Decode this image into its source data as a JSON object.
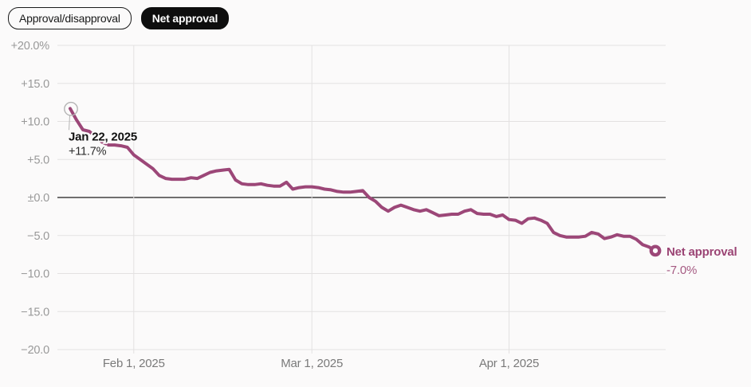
{
  "toggle": {
    "approval_label": "Approval/disapproval",
    "net_label": "Net approval"
  },
  "colors": {
    "line": "#9c4778",
    "end_label_title": "#9b4474",
    "end_label_value": "#a55a82",
    "axis_y_text": "#999999",
    "axis_x_text": "#7a7a7a",
    "grid": "#e3e1e1",
    "zero_line": "#1c1c1c",
    "background": "#fbfafa",
    "start_ring": "#b4b4b4",
    "anno_title_color": "#111111",
    "anno_value_color": "#2b2b2b",
    "pill_active_bg": "#0e0e0e",
    "pill_active_text": "#ffffff"
  },
  "annotations": {
    "start": {
      "title": "Jan 22, 2025",
      "value": "+11.7%"
    },
    "end": {
      "title": "Net approval",
      "value": "-7.0%"
    }
  },
  "chart_data": {
    "type": "line",
    "series_name": "Net approval",
    "unit": "%",
    "ylim": [
      -20,
      20
    ],
    "grid": true,
    "legend_position": "end-of-line",
    "y_ticks": [
      {
        "value": 20,
        "label": "+20.0%"
      },
      {
        "value": 15,
        "label": "+15.0"
      },
      {
        "value": 10,
        "label": "+10.0"
      },
      {
        "value": 5,
        "label": "+5.0"
      },
      {
        "value": 0,
        "label": "±0.0"
      },
      {
        "value": -5,
        "label": "−5.0"
      },
      {
        "value": -10,
        "label": "−10.0"
      },
      {
        "value": -15,
        "label": "−15.0"
      },
      {
        "value": -20,
        "label": "−20.0"
      }
    ],
    "x_ticks": [
      {
        "date": "2025-02-01",
        "label": "Feb 1, 2025"
      },
      {
        "date": "2025-03-01",
        "label": "Mar 1, 2025"
      },
      {
        "date": "2025-04-01",
        "label": "Apr 1, 2025"
      }
    ],
    "dates": [
      "2025-01-22",
      "2025-01-23",
      "2025-01-24",
      "2025-01-25",
      "2025-01-26",
      "2025-01-27",
      "2025-01-28",
      "2025-01-29",
      "2025-01-30",
      "2025-01-31",
      "2025-02-01",
      "2025-02-02",
      "2025-02-03",
      "2025-02-04",
      "2025-02-05",
      "2025-02-06",
      "2025-02-07",
      "2025-02-08",
      "2025-02-09",
      "2025-02-10",
      "2025-02-11",
      "2025-02-12",
      "2025-02-13",
      "2025-02-14",
      "2025-02-15",
      "2025-02-16",
      "2025-02-17",
      "2025-02-18",
      "2025-02-19",
      "2025-02-20",
      "2025-02-21",
      "2025-02-22",
      "2025-02-23",
      "2025-02-24",
      "2025-02-25",
      "2025-02-26",
      "2025-02-27",
      "2025-02-28",
      "2025-03-01",
      "2025-03-02",
      "2025-03-03",
      "2025-03-04",
      "2025-03-05",
      "2025-03-06",
      "2025-03-07",
      "2025-03-08",
      "2025-03-09",
      "2025-03-10",
      "2025-03-11",
      "2025-03-12",
      "2025-03-13",
      "2025-03-14",
      "2025-03-15",
      "2025-03-16",
      "2025-03-17",
      "2025-03-18",
      "2025-03-19",
      "2025-03-20",
      "2025-03-21",
      "2025-03-22",
      "2025-03-23",
      "2025-03-24",
      "2025-03-25",
      "2025-03-26",
      "2025-03-27",
      "2025-03-28",
      "2025-03-29",
      "2025-03-30",
      "2025-03-31",
      "2025-04-01",
      "2025-04-02",
      "2025-04-03",
      "2025-04-04",
      "2025-04-05",
      "2025-04-06",
      "2025-04-07",
      "2025-04-08",
      "2025-04-09",
      "2025-04-10",
      "2025-04-11",
      "2025-04-12",
      "2025-04-13",
      "2025-04-14",
      "2025-04-15",
      "2025-04-16",
      "2025-04-17",
      "2025-04-18",
      "2025-04-19",
      "2025-04-20",
      "2025-04-21",
      "2025-04-22",
      "2025-04-23",
      "2025-04-24"
    ],
    "values": [
      11.7,
      10.2,
      8.9,
      8.7,
      8.0,
      7.3,
      6.9,
      6.9,
      6.8,
      6.6,
      5.6,
      5.0,
      4.4,
      3.8,
      2.9,
      2.5,
      2.4,
      2.4,
      2.4,
      2.6,
      2.5,
      2.9,
      3.3,
      3.5,
      3.6,
      3.7,
      2.3,
      1.8,
      1.7,
      1.7,
      1.8,
      1.6,
      1.5,
      1.5,
      2.0,
      1.1,
      1.3,
      1.4,
      1.4,
      1.3,
      1.1,
      1.0,
      0.8,
      0.7,
      0.7,
      0.8,
      0.9,
      0.0,
      -0.5,
      -1.3,
      -1.8,
      -1.3,
      -1.0,
      -1.3,
      -1.6,
      -1.8,
      -1.6,
      -2.0,
      -2.4,
      -2.3,
      -2.2,
      -2.2,
      -1.8,
      -1.6,
      -2.1,
      -2.2,
      -2.2,
      -2.5,
      -2.3,
      -2.9,
      -3.0,
      -3.4,
      -2.8,
      -2.7,
      -3.0,
      -3.4,
      -4.6,
      -5.0,
      -5.2,
      -5.2,
      -5.2,
      -5.1,
      -4.6,
      -4.8,
      -5.4,
      -5.2,
      -4.9,
      -5.1,
      -5.1,
      -5.5,
      -6.2,
      -6.5,
      -7.0
    ],
    "first_point": {
      "date": "2025-01-22",
      "value": 11.7
    },
    "last_point": {
      "date": "2025-04-24",
      "value": -7.0
    }
  }
}
